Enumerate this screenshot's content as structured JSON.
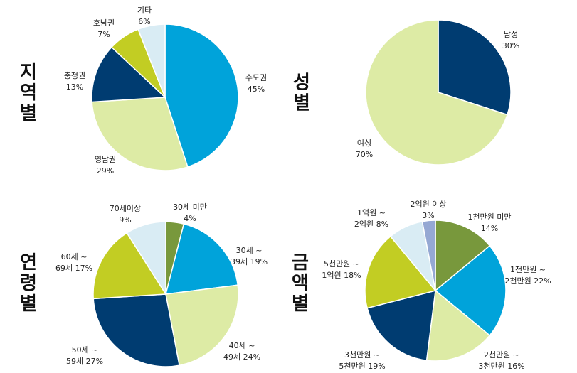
{
  "chart_data": [
    {
      "type": "pie",
      "title": "지역별",
      "colors": [
        "#00A3DA",
        "#DDEBA5",
        "#003C71",
        "#C2CD23",
        "#D9ECF4"
      ],
      "slices": [
        {
          "label": "수도권",
          "value": 45,
          "value_label": "45%"
        },
        {
          "label": "영남권",
          "value": 29,
          "value_label": "29%"
        },
        {
          "label": "충청권",
          "value": 13,
          "value_label": "13%"
        },
        {
          "label": "호남권",
          "value": 7,
          "value_label": "7%"
        },
        {
          "label": "기타",
          "value": 6,
          "value_label": "6%"
        }
      ]
    },
    {
      "type": "pie",
      "title": "성별",
      "colors": [
        "#003C71",
        "#DDEBA5"
      ],
      "slices": [
        {
          "label": "남성",
          "value": 30,
          "value_label": "30%"
        },
        {
          "label": "여성",
          "value": 70,
          "value_label": "70%"
        }
      ]
    },
    {
      "type": "pie",
      "title": "연령별",
      "colors": [
        "#78983C",
        "#00A3DA",
        "#DDEBA5",
        "#003C71",
        "#C2CD23",
        "#D9ECF4"
      ],
      "slices": [
        {
          "label": "30세 미만",
          "value": 4,
          "value_label": "4%"
        },
        {
          "label": "30세 ~ 39세",
          "value": 19,
          "value_label": "19%"
        },
        {
          "label": "40세 ~ 49세",
          "value": 24,
          "value_label": "24%"
        },
        {
          "label": "50세 ~ 59세",
          "value": 27,
          "value_label": "27%"
        },
        {
          "label": "60세 ~ 69세",
          "value": 17,
          "value_label": "17%"
        },
        {
          "label": "70세이상",
          "value": 9,
          "value_label": "9%"
        }
      ]
    },
    {
      "type": "pie",
      "title": "금액별",
      "colors": [
        "#78983C",
        "#00A3DA",
        "#DDEBA5",
        "#003C71",
        "#C2CD23",
        "#D9ECF4",
        "#95A8D3"
      ],
      "slices": [
        {
          "label": "1천만원 미만",
          "value": 14,
          "value_label": "14%"
        },
        {
          "label": "1천만원 ~ 2천만원",
          "value": 22,
          "value_label": "22%"
        },
        {
          "label": "2천만원 ~ 3천만원",
          "value": 16,
          "value_label": "16%"
        },
        {
          "label": "3천만원 ~ 5천만원",
          "value": 19,
          "value_label": "19%"
        },
        {
          "label": "5천만원 ~ 1억원",
          "value": 18,
          "value_label": "18%"
        },
        {
          "label": "1억원 ~ 2억원",
          "value": 8,
          "value_label": "8%"
        },
        {
          "label": "2억원 이상",
          "value": 3,
          "value_label": "3%"
        }
      ]
    }
  ]
}
